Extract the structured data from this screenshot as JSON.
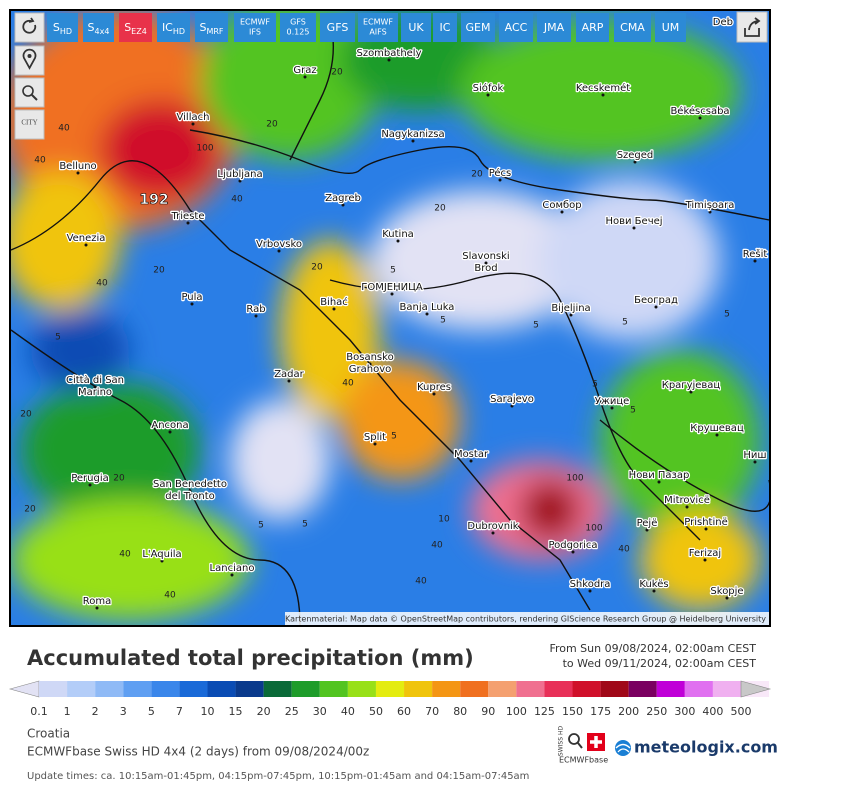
{
  "model_buttons": [
    {
      "main": "S",
      "sub": "HD"
    },
    {
      "main": "S",
      "sub": "4x4"
    },
    {
      "main": "S",
      "sub": "EZ4",
      "active": true
    },
    {
      "main": "IC",
      "sub": "HD"
    },
    {
      "main": "S",
      "sub": "MRF"
    },
    {
      "lines": [
        "ECMWF",
        "IFS"
      ]
    },
    {
      "lines": [
        "GFS",
        "0.125"
      ]
    },
    {
      "main": "GFS"
    },
    {
      "lines": [
        "ECMWF",
        "AIFS"
      ]
    },
    {
      "main": "UK"
    },
    {
      "main": "IC"
    },
    {
      "main": "GEM"
    },
    {
      "main": "ACC"
    },
    {
      "main": "JMA"
    },
    {
      "main": "ARP"
    },
    {
      "main": "CMA"
    },
    {
      "main": "UM"
    }
  ],
  "map": {
    "corner_label": "Deb",
    "city_button": "CITY",
    "max_label": "192",
    "cities": [
      "Szombathely",
      "Graz",
      "Siófok",
      "Kecskemét",
      "Villach",
      "Nagykanizsa",
      "Békéscsaba",
      "Belluno",
      "Ljubljana",
      "Szeged",
      "Pécs",
      "Trieste",
      "Zagreb",
      "Сомбор",
      "Timișoara",
      "Нови Бечеј",
      "Venezia",
      "Vrbovsko",
      "Kutina",
      [
        "Slavonski",
        "Brod"
      ],
      "Rešit",
      "ГОМЈЕНИЦА",
      "Pula",
      "Bihać",
      "Banja Luka",
      "Bijeljina",
      "Београд",
      "Rab",
      [
        "Bosansko",
        "Grahovo"
      ],
      "Zadar",
      "Kupres",
      "Крагујевац",
      [
        "Città di San",
        "Marino"
      ],
      "Sarajevo",
      "Ужице",
      "Крушевац",
      "Ancona",
      "Split",
      "Ниш",
      "Mostar",
      "Нови Пазар",
      "Perugia",
      "Mitrovicë",
      [
        "San Benedetto",
        "del Tronto"
      ],
      "Dubrovnik",
      "Prishtinë",
      "Pejë",
      "Podgorica",
      "Ferizaj",
      "L'Aquila",
      "Lanciano",
      "Shkodra",
      "Kukës",
      "Roma",
      "Skopje"
    ],
    "contour_labels": [
      20,
      40,
      20,
      40,
      100,
      40,
      40,
      20,
      20,
      5,
      5,
      5,
      40,
      5,
      5,
      20,
      5,
      5,
      10,
      5,
      40,
      5,
      20,
      40,
      100,
      40,
      100,
      20,
      5,
      40,
      5,
      20,
      20,
      40
    ],
    "attribution": "Kartenmaterial: Map data © OpenStreetMap contributors, rendering GIScience Research Group @ Heidelberg University"
  },
  "legend": {
    "title": "Accumulated total precipitation (mm)",
    "from": "From Sun 09/08/2024, 02:00am CEST",
    "to": "to Wed 09/11/2024, 02:00am CEST",
    "labels": [
      0.1,
      1,
      2,
      3,
      5,
      7,
      10,
      15,
      20,
      25,
      30,
      40,
      50,
      60,
      70,
      80,
      90,
      100,
      125,
      150,
      175,
      200,
      250,
      300,
      400,
      500
    ],
    "colors": [
      "#e2e2f4",
      "#cfd8f6",
      "#b3cdf8",
      "#8fbaf6",
      "#5f9ff2",
      "#3a86ea",
      "#1a6ad8",
      "#0a4cb4",
      "#0a3a8c",
      "#0a6a38",
      "#1e9c2a",
      "#52c420",
      "#98e018",
      "#e4ec10",
      "#f0c40c",
      "#f49614",
      "#f07020",
      "#f4a070",
      "#f07090",
      "#e83058",
      "#d0102a",
      "#a00818",
      "#7a0060",
      "#c000d8",
      "#e070f0",
      "#f0b0f0",
      "#f8e8f8",
      "#c8c8c8"
    ]
  },
  "footer": {
    "region": "Croatia",
    "model_run": "ECMWFbase Swiss HD 4x4  (2 days)  from 09/08/2024/00z",
    "update_times": "Update times: ca. 10:15am-01:45pm, 04:15pm-07:45pm, 10:15pm-01:45am and 04:15am-07:45am",
    "logo": "meteologix.com",
    "badge_top": "SWISS HD",
    "badge_bottom": "ECMWFbase"
  }
}
